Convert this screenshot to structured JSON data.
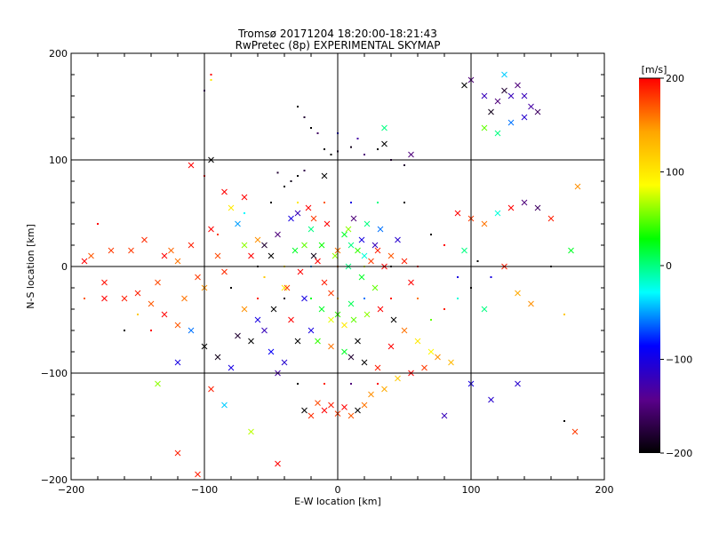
{
  "chart_data": {
    "type": "scatter",
    "title": "Tromsø 20171204 18:20:00-18:21:43",
    "subtitle": "RwPretec (8p) EXPERIMENTAL SKYMAP",
    "xlabel": "E-W location [km]",
    "ylabel": "N-S location [km]",
    "xlim": [
      -200,
      200
    ],
    "ylim": [
      -200,
      200
    ],
    "x_ticks": [
      -200,
      -100,
      0,
      100,
      200
    ],
    "y_ticks": [
      -200,
      -100,
      0,
      100,
      200
    ],
    "x_tick_labels": [
      "−200",
      "−100",
      "0",
      "100",
      "200"
    ],
    "y_tick_labels": [
      "−200",
      "−100",
      "0",
      "100",
      "200"
    ],
    "grid": true,
    "colorbar": {
      "label": "[m/s]",
      "range": [
        -200,
        200
      ],
      "ticks": [
        200,
        100,
        0,
        -100,
        -200
      ],
      "tick_labels": [
        "200",
        "100",
        "0",
        "−100",
        "−200"
      ],
      "colors": [
        "#ff0000",
        "#ffa500",
        "#ffff00",
        "#00ff00",
        "#00ffff",
        "#0000ff",
        "#5a008c",
        "#000000"
      ]
    },
    "marker_types": [
      "x",
      "dot"
    ],
    "points": [
      [
        -155,
        15,
        180,
        "x"
      ],
      [
        -150,
        -25,
        190,
        "x"
      ],
      [
        -140,
        -35,
        170,
        "x"
      ],
      [
        -130,
        10,
        200,
        "x"
      ],
      [
        -120,
        5,
        160,
        "x"
      ],
      [
        -110,
        20,
        190,
        "x"
      ],
      [
        -105,
        -10,
        180,
        "x"
      ],
      [
        -100,
        -20,
        150,
        "x"
      ],
      [
        -95,
        35,
        200,
        "x"
      ],
      [
        -90,
        10,
        175,
        "x"
      ],
      [
        -85,
        -5,
        185,
        "x"
      ],
      [
        -160,
        -30,
        190,
        "x"
      ],
      [
        -170,
        15,
        180,
        "x"
      ],
      [
        -175,
        -15,
        195,
        "x"
      ],
      [
        -185,
        10,
        170,
        "x"
      ],
      [
        -145,
        25,
        185,
        "x"
      ],
      [
        -135,
        -15,
        175,
        "x"
      ],
      [
        -125,
        15,
        165,
        "x"
      ],
      [
        -115,
        -30,
        160,
        "x"
      ],
      [
        -60,
        25,
        150,
        "x"
      ],
      [
        -55,
        -10,
        120,
        "dot"
      ],
      [
        -50,
        10,
        -200,
        "x"
      ],
      [
        -45,
        30,
        -150,
        "x"
      ],
      [
        -40,
        -20,
        100,
        "x"
      ],
      [
        -35,
        45,
        -100,
        "x"
      ],
      [
        -30,
        50,
        -120,
        "x"
      ],
      [
        -25,
        20,
        50,
        "x"
      ],
      [
        -20,
        35,
        0,
        "x"
      ],
      [
        -15,
        5,
        200,
        "x"
      ],
      [
        -10,
        -15,
        190,
        "x"
      ],
      [
        -5,
        -25,
        180,
        "x"
      ],
      [
        0,
        15,
        160,
        "x"
      ],
      [
        5,
        30,
        20,
        "x"
      ],
      [
        10,
        20,
        0,
        "x"
      ],
      [
        15,
        15,
        40,
        "x"
      ],
      [
        20,
        10,
        -20,
        "x"
      ],
      [
        25,
        5,
        180,
        "x"
      ],
      [
        30,
        15,
        190,
        "x"
      ],
      [
        35,
        0,
        200,
        "x"
      ],
      [
        40,
        10,
        170,
        "x"
      ],
      [
        18,
        25,
        -100,
        "x"
      ],
      [
        28,
        20,
        -120,
        "x"
      ],
      [
        8,
        35,
        60,
        "x"
      ],
      [
        -8,
        40,
        200,
        "x"
      ],
      [
        -18,
        45,
        180,
        "x"
      ],
      [
        -12,
        -40,
        20,
        "x"
      ],
      [
        -5,
        -50,
        80,
        "x"
      ],
      [
        0,
        -45,
        40,
        "x"
      ],
      [
        5,
        -55,
        100,
        "x"
      ],
      [
        10,
        -35,
        10,
        "x"
      ],
      [
        -20,
        -60,
        -100,
        "x"
      ],
      [
        -30,
        -70,
        -200,
        "x"
      ],
      [
        -40,
        -90,
        -110,
        "x"
      ],
      [
        -45,
        -100,
        -130,
        "x"
      ],
      [
        -50,
        -80,
        -90,
        "x"
      ],
      [
        -55,
        -60,
        -120,
        "x"
      ],
      [
        -60,
        -50,
        -100,
        "x"
      ],
      [
        -65,
        -70,
        -200,
        "x"
      ],
      [
        -70,
        -40,
        150,
        "x"
      ],
      [
        -75,
        -65,
        -180,
        "x"
      ],
      [
        -10,
        -135,
        200,
        "x"
      ],
      [
        -5,
        -130,
        190,
        "x"
      ],
      [
        0,
        -138,
        180,
        "x"
      ],
      [
        5,
        -132,
        200,
        "x"
      ],
      [
        -15,
        -128,
        175,
        "x"
      ],
      [
        -20,
        -140,
        185,
        "x"
      ],
      [
        10,
        -140,
        170,
        "x"
      ],
      [
        15,
        -135,
        -200,
        "x"
      ],
      [
        -25,
        -135,
        -200,
        "x"
      ],
      [
        20,
        -130,
        160,
        "x"
      ],
      [
        25,
        -120,
        150,
        "x"
      ],
      [
        35,
        -115,
        140,
        "x"
      ],
      [
        45,
        -105,
        120,
        "x"
      ],
      [
        55,
        -100,
        200,
        "x"
      ],
      [
        65,
        -95,
        180,
        "x"
      ],
      [
        75,
        -85,
        150,
        "x"
      ],
      [
        85,
        -90,
        130,
        "x"
      ],
      [
        30,
        -95,
        190,
        "x"
      ],
      [
        20,
        -90,
        -200,
        "x"
      ],
      [
        10,
        -85,
        -180,
        "x"
      ],
      [
        40,
        -75,
        200,
        "x"
      ],
      [
        50,
        -60,
        160,
        "x"
      ],
      [
        60,
        -70,
        100,
        "x"
      ],
      [
        70,
        -80,
        90,
        "x"
      ],
      [
        95,
        170,
        -200,
        "x"
      ],
      [
        100,
        175,
        -150,
        "x"
      ],
      [
        110,
        160,
        -120,
        "x"
      ],
      [
        115,
        145,
        -190,
        "x"
      ],
      [
        120,
        155,
        -150,
        "x"
      ],
      [
        125,
        165,
        -180,
        "x"
      ],
      [
        130,
        160,
        -120,
        "x"
      ],
      [
        135,
        170,
        -150,
        "x"
      ],
      [
        140,
        140,
        -110,
        "x"
      ],
      [
        130,
        135,
        -60,
        "x"
      ],
      [
        120,
        125,
        0,
        "x"
      ],
      [
        110,
        130,
        50,
        "x"
      ],
      [
        125,
        180,
        -40,
        "x"
      ],
      [
        140,
        160,
        -120,
        "x"
      ],
      [
        145,
        150,
        -130,
        "x"
      ],
      [
        150,
        145,
        -160,
        "x"
      ],
      [
        -10,
        110,
        -200,
        "dot"
      ],
      [
        -5,
        105,
        -200,
        "dot"
      ],
      [
        0,
        108,
        -180,
        "dot"
      ],
      [
        10,
        112,
        -190,
        "dot"
      ],
      [
        20,
        105,
        -150,
        "dot"
      ],
      [
        30,
        110,
        -200,
        "dot"
      ],
      [
        40,
        100,
        -170,
        "dot"
      ],
      [
        50,
        95,
        -180,
        "dot"
      ],
      [
        -30,
        85,
        -200,
        "dot"
      ],
      [
        -35,
        80,
        -190,
        "dot"
      ],
      [
        -40,
        75,
        -200,
        "dot"
      ],
      [
        -45,
        88,
        -180,
        "dot"
      ],
      [
        -25,
        90,
        -170,
        "dot"
      ],
      [
        35,
        115,
        -200,
        "x"
      ],
      [
        55,
        105,
        -150,
        "x"
      ],
      [
        -95,
        100,
        -200,
        "x"
      ],
      [
        -110,
        95,
        200,
        "x"
      ],
      [
        -100,
        85,
        200,
        "dot"
      ],
      [
        -85,
        70,
        200,
        "x"
      ],
      [
        -80,
        55,
        100,
        "x"
      ],
      [
        -75,
        40,
        -50,
        "x"
      ],
      [
        -70,
        20,
        60,
        "x"
      ],
      [
        -130,
        -45,
        200,
        "x"
      ],
      [
        -120,
        -55,
        170,
        "x"
      ],
      [
        -110,
        -60,
        -60,
        "x"
      ],
      [
        -100,
        -75,
        -200,
        "x"
      ],
      [
        -90,
        -85,
        -190,
        "x"
      ],
      [
        -80,
        -95,
        -100,
        "x"
      ],
      [
        -120,
        -90,
        -100,
        "x"
      ],
      [
        -95,
        -115,
        190,
        "x"
      ],
      [
        -85,
        -130,
        -40,
        "x"
      ],
      [
        -65,
        -155,
        70,
        "x"
      ],
      [
        -45,
        -185,
        200,
        "x"
      ],
      [
        -120,
        -175,
        190,
        "x"
      ],
      [
        -105,
        -195,
        190,
        "x"
      ],
      [
        -135,
        -110,
        60,
        "x"
      ],
      [
        -175,
        -30,
        200,
        "x"
      ],
      [
        -190,
        5,
        200,
        "x"
      ],
      [
        80,
        -140,
        -120,
        "x"
      ],
      [
        100,
        -110,
        -100,
        "x"
      ],
      [
        115,
        -125,
        -110,
        "x"
      ],
      [
        135,
        -110,
        -110,
        "x"
      ],
      [
        90,
        50,
        200,
        "x"
      ],
      [
        100,
        45,
        180,
        "x"
      ],
      [
        110,
        40,
        160,
        "x"
      ],
      [
        120,
        50,
        -20,
        "x"
      ],
      [
        130,
        55,
        200,
        "x"
      ],
      [
        140,
        60,
        -150,
        "x"
      ],
      [
        150,
        55,
        -160,
        "x"
      ],
      [
        160,
        45,
        190,
        "x"
      ],
      [
        175,
        15,
        20,
        "x"
      ],
      [
        180,
        75,
        150,
        "x"
      ],
      [
        95,
        15,
        0,
        "x"
      ],
      [
        105,
        5,
        -200,
        "dot"
      ],
      [
        115,
        -10,
        -100,
        "dot"
      ],
      [
        125,
        0,
        190,
        "x"
      ],
      [
        135,
        -25,
        140,
        "x"
      ],
      [
        145,
        -35,
        150,
        "x"
      ],
      [
        160,
        0,
        -200,
        "dot"
      ],
      [
        170,
        -45,
        120,
        "dot"
      ],
      [
        178,
        -155,
        180,
        "x"
      ],
      [
        170,
        -145,
        -200,
        "dot"
      ],
      [
        -30,
        150,
        -200,
        "dot"
      ],
      [
        -25,
        140,
        -180,
        "dot"
      ],
      [
        -20,
        130,
        -200,
        "dot"
      ],
      [
        -15,
        125,
        -160,
        "dot"
      ],
      [
        0,
        125,
        -100,
        "dot"
      ],
      [
        15,
        120,
        -130,
        "dot"
      ],
      [
        35,
        130,
        0,
        "x"
      ],
      [
        -95,
        180,
        200,
        "dot"
      ],
      [
        -100,
        165,
        -150,
        "dot"
      ],
      [
        -95,
        175,
        100,
        "dot"
      ],
      [
        -70,
        65,
        200,
        "x"
      ],
      [
        -10,
        85,
        -200,
        "x"
      ],
      [
        60,
        -30,
        160,
        "dot"
      ],
      [
        70,
        -50,
        50,
        "dot"
      ],
      [
        80,
        -40,
        190,
        "dot"
      ],
      [
        90,
        -30,
        -20,
        "dot"
      ],
      [
        100,
        -20,
        -200,
        "dot"
      ],
      [
        110,
        -40,
        0,
        "x"
      ],
      [
        -140,
        -60,
        200,
        "dot"
      ],
      [
        -150,
        -45,
        120,
        "dot"
      ],
      [
        -160,
        -60,
        -200,
        "dot"
      ],
      [
        -180,
        40,
        200,
        "dot"
      ],
      [
        -190,
        -30,
        170,
        "dot"
      ],
      [
        -60,
        0,
        -200,
        "dot"
      ],
      [
        -40,
        0,
        100,
        "dot"
      ],
      [
        -20,
        0,
        -50,
        "dot"
      ],
      [
        0,
        0,
        150,
        "dot"
      ],
      [
        20,
        0,
        80,
        "dot"
      ],
      [
        40,
        0,
        -200,
        "dot"
      ],
      [
        60,
        0,
        190,
        "dot"
      ],
      [
        -50,
        60,
        -200,
        "dot"
      ],
      [
        -30,
        60,
        100,
        "dot"
      ],
      [
        -10,
        60,
        170,
        "dot"
      ],
      [
        10,
        60,
        -100,
        "dot"
      ],
      [
        30,
        60,
        0,
        "dot"
      ],
      [
        50,
        60,
        -200,
        "dot"
      ],
      [
        -60,
        -30,
        190,
        "dot"
      ],
      [
        -40,
        -30,
        -190,
        "dot"
      ],
      [
        -20,
        -30,
        20,
        "dot"
      ],
      [
        0,
        -30,
        120,
        "dot"
      ],
      [
        20,
        -30,
        -60,
        "dot"
      ],
      [
        40,
        -30,
        190,
        "dot"
      ],
      [
        -30,
        -110,
        -200,
        "dot"
      ],
      [
        -10,
        -110,
        190,
        "dot"
      ],
      [
        10,
        -110,
        -150,
        "dot"
      ],
      [
        30,
        -110,
        200,
        "dot"
      ],
      [
        -80,
        -20,
        -200,
        "dot"
      ],
      [
        -90,
        30,
        180,
        "dot"
      ],
      [
        -70,
        50,
        -30,
        "dot"
      ],
      [
        70,
        30,
        -200,
        "dot"
      ],
      [
        80,
        20,
        200,
        "dot"
      ],
      [
        90,
        -10,
        -100,
        "dot"
      ],
      [
        -12,
        20,
        30,
        "x"
      ],
      [
        -2,
        10,
        60,
        "x"
      ],
      [
        8,
        0,
        0,
        "x"
      ],
      [
        18,
        -10,
        20,
        "x"
      ],
      [
        28,
        -20,
        50,
        "x"
      ],
      [
        -22,
        55,
        200,
        "x"
      ],
      [
        -32,
        15,
        20,
        "x"
      ],
      [
        12,
        45,
        -150,
        "x"
      ],
      [
        22,
        40,
        0,
        "x"
      ],
      [
        32,
        35,
        -60,
        "x"
      ],
      [
        -15,
        -70,
        40,
        "x"
      ],
      [
        -5,
        -75,
        160,
        "x"
      ],
      [
        5,
        -80,
        20,
        "x"
      ],
      [
        15,
        -70,
        -200,
        "x"
      ],
      [
        -35,
        -50,
        200,
        "x"
      ],
      [
        -25,
        -30,
        -100,
        "x"
      ],
      [
        45,
        25,
        -110,
        "x"
      ],
      [
        50,
        5,
        190,
        "x"
      ],
      [
        55,
        -15,
        200,
        "x"
      ],
      [
        -55,
        20,
        -180,
        "x"
      ],
      [
        -65,
        10,
        200,
        "x"
      ],
      [
        -48,
        -40,
        -200,
        "x"
      ],
      [
        -38,
        -20,
        180,
        "x"
      ],
      [
        -28,
        -5,
        200,
        "x"
      ],
      [
        -18,
        10,
        -190,
        "x"
      ],
      [
        12,
        -50,
        50,
        "x"
      ],
      [
        22,
        -45,
        60,
        "x"
      ],
      [
        32,
        -40,
        200,
        "x"
      ],
      [
        42,
        -50,
        -200,
        "x"
      ]
    ]
  }
}
